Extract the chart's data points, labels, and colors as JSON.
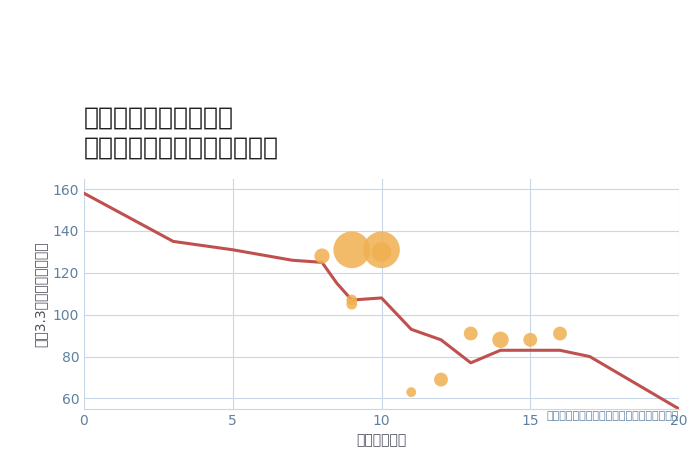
{
  "title": "奈良県奈良市北市町の\n駅距離別中古マンション価格",
  "xlabel": "駅距離（分）",
  "ylabel": "坪（3.3㎡）単価（万円）",
  "annotation": "円の大きさは、取引のあった物件面積を示す",
  "xlim": [
    0,
    20
  ],
  "ylim": [
    55,
    165
  ],
  "yticks": [
    60,
    80,
    100,
    120,
    140,
    160
  ],
  "xticks": [
    0,
    5,
    10,
    15,
    20
  ],
  "line_color": "#c0504d",
  "scatter_color": "#f0b050",
  "background_color": "#ffffff",
  "grid_color": "#c8d8e8",
  "line_x": [
    0,
    3,
    5,
    7,
    8,
    8.5,
    9,
    10,
    11,
    12,
    13,
    14,
    15,
    16,
    17,
    20
  ],
  "line_y": [
    158,
    135,
    131,
    126,
    125,
    115,
    107,
    108,
    93,
    88,
    77,
    83,
    83,
    83,
    80,
    55
  ],
  "scatter_x": [
    8,
    9,
    9,
    9,
    10,
    10,
    11,
    12,
    13,
    14,
    15,
    16
  ],
  "scatter_y": [
    128,
    131,
    107,
    105,
    131,
    130,
    63,
    69,
    91,
    88,
    88,
    91
  ],
  "scatter_sizes": [
    120,
    700,
    60,
    60,
    700,
    200,
    50,
    100,
    100,
    140,
    100,
    100
  ],
  "title_fontsize": 18,
  "label_fontsize": 10,
  "tick_fontsize": 10,
  "annotation_fontsize": 8
}
